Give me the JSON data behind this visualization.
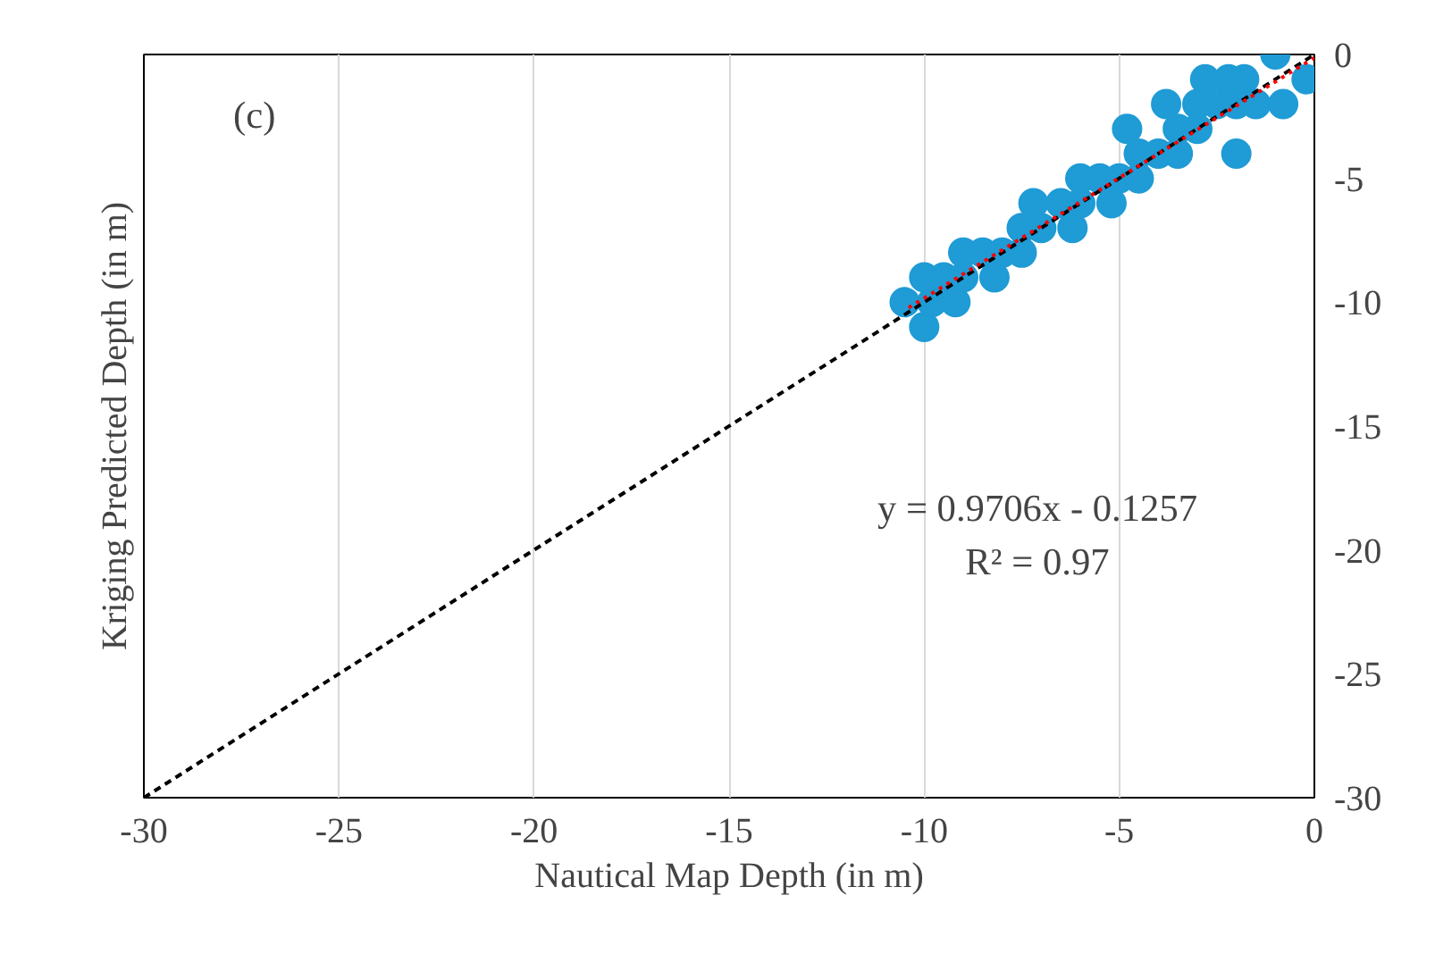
{
  "chart_data": {
    "type": "scatter",
    "xlabel": "Nautical Map Depth (in m)",
    "ylabel": "Kriging Predicted Depth (in m)",
    "xlim": [
      -30,
      0
    ],
    "ylim": [
      -30,
      0
    ],
    "xticks": [
      -30,
      -25,
      -20,
      -15,
      -10,
      -5,
      0
    ],
    "yticks": [
      -30,
      -25,
      -20,
      -15,
      -10,
      -5,
      0
    ],
    "grid": true,
    "marker": "circle",
    "annotations": [
      "(c)",
      "y = 0.9706x - 0.1257",
      "R² = 0.97"
    ],
    "series": [
      {
        "color": "#1f9bd5",
        "x": [
          -10.5,
          -10,
          -10,
          -9.8,
          -9.5,
          -9.2,
          -9,
          -9,
          -8.5,
          -8.2,
          -8,
          -7.5,
          -7.5,
          -7.2,
          -7,
          -6.5,
          -6.2,
          -6,
          -6,
          -5.5,
          -5.2,
          -5,
          -4.8,
          -4.5,
          -4.5,
          -4,
          -3.8,
          -3.5,
          -3.5,
          -3,
          -3,
          -2.8,
          -2.5,
          -2.2,
          -2,
          -2,
          -1.8,
          -1.5,
          -1,
          -0.8,
          -0.2
        ],
        "values": [
          -10,
          -9,
          -11,
          -10,
          -9,
          -10,
          -8,
          -9,
          -8,
          -9,
          -8,
          -7,
          -8,
          -6,
          -7,
          -6,
          -7,
          -5,
          -6,
          -5,
          -6,
          -5,
          -3,
          -4,
          -5,
          -4,
          -2,
          -3,
          -4,
          -2,
          -3,
          -1,
          -2,
          -1,
          -4,
          -2,
          -1,
          -2,
          0,
          -2,
          -1
        ]
      },
      {
        "type": "line",
        "color": "#000000",
        "line_style": "dashed",
        "marker": "none",
        "x": [
          -30,
          0
        ],
        "values": [
          -30,
          0
        ]
      },
      {
        "type": "line",
        "color": "#ff0000",
        "line_style": "dotted",
        "marker": "none",
        "x": [
          -10.4,
          0
        ],
        "values": [
          -10.22,
          -0.13
        ]
      }
    ]
  }
}
